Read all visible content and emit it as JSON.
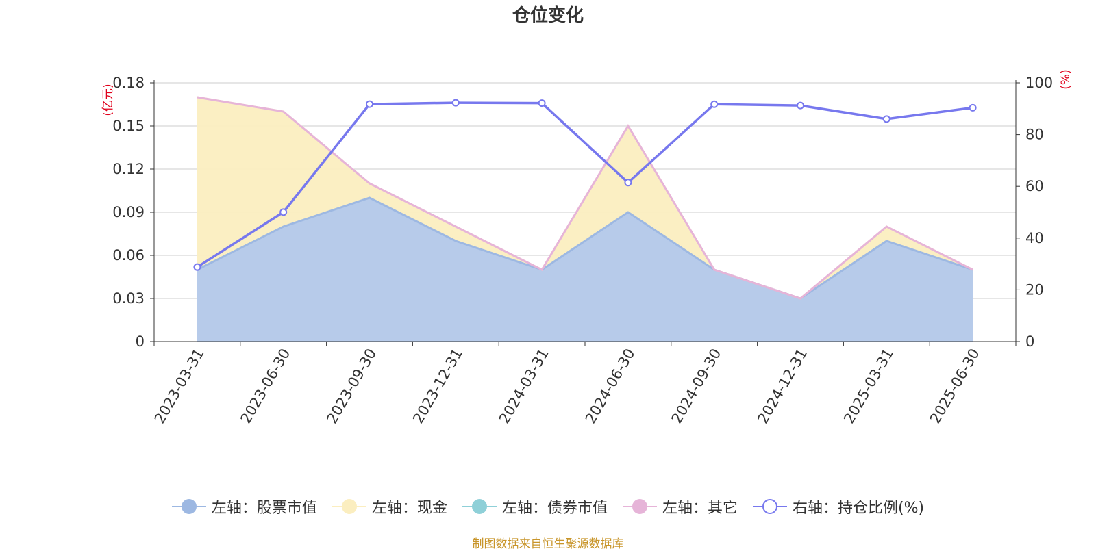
{
  "footer": "制图数据来自恒生聚源数据库",
  "colors": {
    "stock": "#9db8e2",
    "stock_fill": "#b7cbea",
    "cash": "#fbeec0",
    "bond": "#8fd0d8",
    "other": "#e6b4d8",
    "ratio": "#7778ee",
    "axis_unit": "#e0001b",
    "footer": "#c8952a",
    "grid": "#cccccc"
  },
  "chart_data": {
    "type": "area",
    "title": "仓位变化",
    "categories": [
      "2023-03-31",
      "2023-06-30",
      "2023-09-30",
      "2023-12-31",
      "2024-03-31",
      "2024-06-30",
      "2024-09-30",
      "2024-12-31",
      "2025-03-31",
      "2025-06-30"
    ],
    "y_left": {
      "label": "(亿元)",
      "ylim": [
        0,
        0.18
      ],
      "ticks": [
        "0",
        "0.03",
        "0.06",
        "0.09",
        "0.12",
        "0.15",
        "0.18"
      ]
    },
    "y_right": {
      "label": "(%)",
      "ylim": [
        0,
        100
      ],
      "ticks": [
        "0",
        "20",
        "40",
        "60",
        "80",
        "100"
      ]
    },
    "grid": true,
    "legend_position": "bottom-center",
    "stacked": true,
    "series": [
      {
        "name": "左轴：股票市值",
        "axis": "left",
        "kind": "area",
        "values": [
          0.05,
          0.08,
          0.1,
          0.07,
          0.05,
          0.09,
          0.05,
          0.03,
          0.07,
          0.05
        ]
      },
      {
        "name": "左轴：现金",
        "axis": "left",
        "kind": "area",
        "values": [
          0.12,
          0.08,
          0.01,
          0.01,
          0.0,
          0.06,
          0.0,
          0.0,
          0.01,
          0.0
        ]
      },
      {
        "name": "左轴：债券市值",
        "axis": "left",
        "kind": "area",
        "values": [
          0,
          0,
          0,
          0,
          0,
          0,
          0,
          0,
          0,
          0
        ]
      },
      {
        "name": "左轴：其它",
        "axis": "left",
        "kind": "area",
        "values": [
          0,
          0,
          0,
          0,
          0,
          0,
          0,
          0,
          0,
          0
        ]
      },
      {
        "name": "右轴：持仓比例(%)",
        "axis": "right",
        "kind": "line",
        "values": [
          28.79,
          50.03,
          91.76,
          92.31,
          92.15,
          61.43,
          91.72,
          91.23,
          86.02,
          90.37
        ]
      }
    ]
  }
}
